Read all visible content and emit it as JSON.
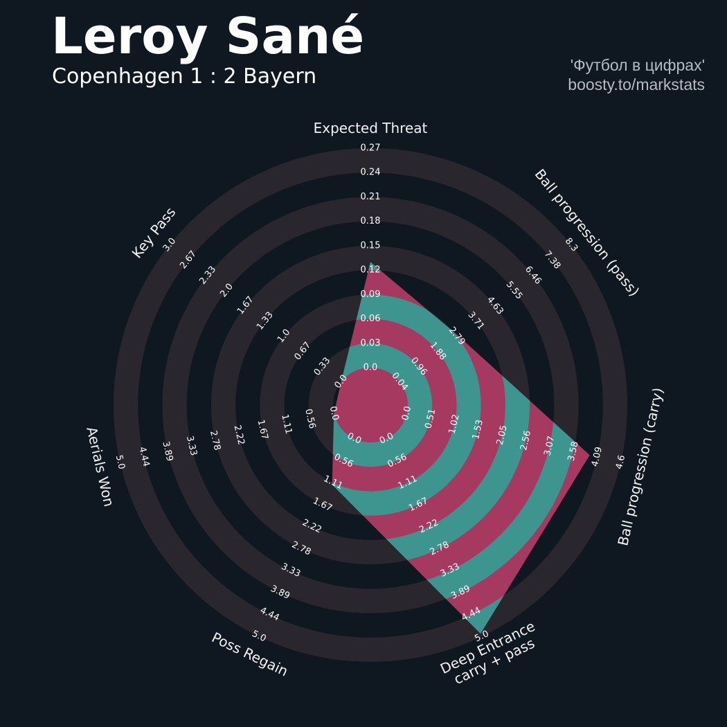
{
  "chart_data": {
    "type": "radar",
    "title": "Leroy Sané",
    "subtitle": "Copenhagen 1 : 2 Bayern",
    "credits": [
      "'Футбол в цифрах'",
      "boosty.to/markstats"
    ],
    "categories": [
      "Expected Threat",
      "Ball progression (pass)",
      "Ball progression (carry)",
      "Deep Entrance\ncarry + pass",
      "Poss Regain",
      "Aerials Won",
      "Key Pass"
    ],
    "axes": [
      {
        "lim": [
          0,
          0.27
        ],
        "ticks": [
          {
            "value": 0,
            "label": "0.0"
          },
          0.03,
          0.06,
          0.09,
          0.12,
          0.15,
          0.18,
          0.21,
          0.24,
          0.27
        ]
      },
      {
        "lim": [
          0.04,
          8.3
        ],
        "ticks": [
          0.04,
          0.96,
          1.88,
          2.79,
          3.71,
          4.63,
          5.55,
          6.46,
          7.38,
          8.3
        ]
      },
      {
        "lim": [
          0,
          4.6
        ],
        "ticks": [
          {
            "value": 0,
            "label": "0.0"
          },
          0.51,
          1.02,
          1.53,
          2.05,
          2.56,
          3.07,
          3.58,
          4.09,
          4.6
        ]
      },
      {
        "lim": [
          0,
          5
        ],
        "ticks": [
          {
            "value": 0,
            "label": "0.0"
          },
          0.56,
          1.11,
          1.67,
          2.22,
          2.78,
          3.33,
          3.89,
          4.44,
          {
            "value": 5,
            "label": "5.0"
          }
        ]
      },
      {
        "lim": [
          0,
          5
        ],
        "ticks": [
          {
            "value": 0,
            "label": "0.0"
          },
          0.56,
          1.11,
          1.67,
          2.22,
          2.78,
          3.33,
          3.89,
          4.44,
          {
            "value": 5,
            "label": "5.0"
          }
        ]
      },
      {
        "lim": [
          0,
          5
        ],
        "ticks": [
          {
            "value": 0,
            "label": "0.0"
          },
          0.56,
          1.11,
          1.67,
          2.22,
          2.78,
          3.33,
          3.89,
          4.44,
          {
            "value": 5,
            "label": "5.0"
          }
        ]
      },
      {
        "lim": [
          0,
          3
        ],
        "ticks": [
          {
            "value": 0,
            "label": "0.0"
          },
          0.33,
          0.67,
          {
            "value": 1,
            "label": "1.0"
          },
          1.33,
          1.67,
          {
            "value": 2,
            "label": "2.0"
          },
          2.33,
          2.67,
          {
            "value": 3,
            "label": "3.0"
          }
        ]
      }
    ],
    "series": [
      {
        "color": "#a6395f",
        "ring_color": "#3e948f",
        "values": [
          0.13,
          2.84,
          3.93,
          4.93,
          1.16,
          0,
          0
        ]
      }
    ],
    "background_ring_color": "#29262d"
  }
}
